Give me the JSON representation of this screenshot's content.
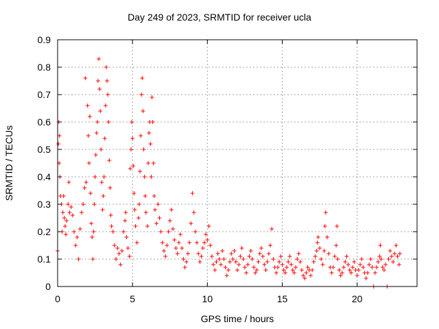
{
  "chart_data": {
    "type": "scatter",
    "title": "Day 249 of 2023, SRMTID for receiver ucla",
    "xlabel": "GPS time / hours",
    "ylabel": "SRMTID / TECUs",
    "xlim": [
      0,
      24
    ],
    "ylim": [
      0,
      0.9
    ],
    "xticks": [
      0,
      5,
      10,
      15,
      20
    ],
    "yticks": [
      0,
      0.1,
      0.2,
      0.3,
      0.4,
      0.5,
      0.6,
      0.7,
      0.8,
      0.9
    ],
    "grid": true,
    "marker": "+",
    "series": [
      {
        "name": "SRMTID",
        "color": "#ff0000",
        "points": [
          [
            0.0,
            0.13
          ],
          [
            0.05,
            0.52
          ],
          [
            0.08,
            0.6
          ],
          [
            0.1,
            0.45
          ],
          [
            0.12,
            0.55
          ],
          [
            0.15,
            0.4
          ],
          [
            0.2,
            0.33
          ],
          [
            0.25,
            0.3
          ],
          [
            0.3,
            0.2
          ],
          [
            0.35,
            0.27
          ],
          [
            0.4,
            0.33
          ],
          [
            0.45,
            0.25
          ],
          [
            0.5,
            0.22
          ],
          [
            0.55,
            0.19
          ],
          [
            0.6,
            0.24
          ],
          [
            0.7,
            0.3
          ],
          [
            0.75,
            0.38
          ],
          [
            0.8,
            0.27
          ],
          [
            0.9,
            0.29
          ],
          [
            1.0,
            0.26
          ],
          [
            1.1,
            0.2
          ],
          [
            1.2,
            0.15
          ],
          [
            1.3,
            0.18
          ],
          [
            1.4,
            0.1
          ],
          [
            1.5,
            0.21
          ],
          [
            1.6,
            0.27
          ],
          [
            1.7,
            0.3
          ],
          [
            1.8,
            0.36
          ],
          [
            1.9,
            0.38
          ],
          [
            1.85,
            0.76
          ],
          [
            2.0,
            0.66
          ],
          [
            2.05,
            0.55
          ],
          [
            2.1,
            0.45
          ],
          [
            2.15,
            0.62
          ],
          [
            2.2,
            0.34
          ],
          [
            2.25,
            0.23
          ],
          [
            2.3,
            0.18
          ],
          [
            2.35,
            0.1
          ],
          [
            2.4,
            0.2
          ],
          [
            2.45,
            0.3
          ],
          [
            2.5,
            0.4
          ],
          [
            2.55,
            0.48
          ],
          [
            2.6,
            0.56
          ],
          [
            2.65,
            0.6
          ],
          [
            2.7,
            0.75
          ],
          [
            2.75,
            0.83
          ],
          [
            2.8,
            0.72
          ],
          [
            2.85,
            0.64
          ],
          [
            2.9,
            0.5
          ],
          [
            2.95,
            0.38
          ],
          [
            3.0,
            0.28
          ],
          [
            3.05,
            0.33
          ],
          [
            3.1,
            0.4
          ],
          [
            3.15,
            0.54
          ],
          [
            3.2,
            0.66
          ],
          [
            3.25,
            0.8
          ],
          [
            3.3,
            0.75
          ],
          [
            3.35,
            0.7
          ],
          [
            3.4,
            0.6
          ],
          [
            3.45,
            0.46
          ],
          [
            3.5,
            0.36
          ],
          [
            3.55,
            0.26
          ],
          [
            3.6,
            0.22
          ],
          [
            3.7,
            0.2
          ],
          [
            3.8,
            0.15
          ],
          [
            3.9,
            0.1
          ],
          [
            4.0,
            0.14
          ],
          [
            4.1,
            0.12
          ],
          [
            4.2,
            0.08
          ],
          [
            4.3,
            0.13
          ],
          [
            4.4,
            0.2
          ],
          [
            4.5,
            0.24
          ],
          [
            4.55,
            0.27
          ],
          [
            4.6,
            0.18
          ],
          [
            4.7,
            0.14
          ],
          [
            4.8,
            0.11
          ],
          [
            4.85,
            0.43
          ],
          [
            4.9,
            0.5
          ],
          [
            4.95,
            0.6
          ],
          [
            5.0,
            0.54
          ],
          [
            5.05,
            0.44
          ],
          [
            5.1,
            0.34
          ],
          [
            5.15,
            0.28
          ],
          [
            5.2,
            0.22
          ],
          [
            5.3,
            0.16
          ],
          [
            5.4,
            0.25
          ],
          [
            5.45,
            0.3
          ],
          [
            5.5,
            0.42
          ],
          [
            5.55,
            0.55
          ],
          [
            5.6,
            0.7
          ],
          [
            5.65,
            0.76
          ],
          [
            5.7,
            0.64
          ],
          [
            5.75,
            0.5
          ],
          [
            5.8,
            0.4
          ],
          [
            5.85,
            0.33
          ],
          [
            5.9,
            0.27
          ],
          [
            6.0,
            0.22
          ],
          [
            6.05,
            0.45
          ],
          [
            6.1,
            0.56
          ],
          [
            6.15,
            0.6
          ],
          [
            6.2,
            0.52
          ],
          [
            6.25,
            0.4
          ],
          [
            6.3,
            0.69
          ],
          [
            6.35,
            0.6
          ],
          [
            6.4,
            0.45
          ],
          [
            6.45,
            0.33
          ],
          [
            6.5,
            0.28
          ],
          [
            6.6,
            0.23
          ],
          [
            6.7,
            0.3
          ],
          [
            6.8,
            0.25
          ],
          [
            6.9,
            0.2
          ],
          [
            7.0,
            0.16
          ],
          [
            7.1,
            0.13
          ],
          [
            7.2,
            0.11
          ],
          [
            7.3,
            0.15
          ],
          [
            7.4,
            0.2
          ],
          [
            7.5,
            0.24
          ],
          [
            7.6,
            0.28
          ],
          [
            7.7,
            0.21
          ],
          [
            7.8,
            0.17
          ],
          [
            7.9,
            0.14
          ],
          [
            8.0,
            0.12
          ],
          [
            8.1,
            0.16
          ],
          [
            8.2,
            0.19
          ],
          [
            8.3,
            0.14
          ],
          [
            8.4,
            0.1
          ],
          [
            8.5,
            0.07
          ],
          [
            8.6,
            0.09
          ],
          [
            8.7,
            0.12
          ],
          [
            8.8,
            0.16
          ],
          [
            8.9,
            0.23
          ],
          [
            9.0,
            0.34
          ],
          [
            9.1,
            0.27
          ],
          [
            9.2,
            0.2
          ],
          [
            9.3,
            0.16
          ],
          [
            9.4,
            0.12
          ],
          [
            9.5,
            0.09
          ],
          [
            9.6,
            0.11
          ],
          [
            9.7,
            0.14
          ],
          [
            9.8,
            0.16
          ],
          [
            9.9,
            0.19
          ],
          [
            10.0,
            0.17
          ],
          [
            10.1,
            0.22
          ],
          [
            10.2,
            0.15
          ],
          [
            10.3,
            0.11
          ],
          [
            10.4,
            0.08
          ],
          [
            10.5,
            0.06
          ],
          [
            10.6,
            0.09
          ],
          [
            10.7,
            0.12
          ],
          [
            10.8,
            0.1
          ],
          [
            10.9,
            0.08
          ],
          [
            11.0,
            0.13
          ],
          [
            11.1,
            0.1
          ],
          [
            11.2,
            0.07
          ],
          [
            11.3,
            0.04
          ],
          [
            11.4,
            0.06
          ],
          [
            11.5,
            0.09
          ],
          [
            11.6,
            0.12
          ],
          [
            11.7,
            0.1
          ],
          [
            11.8,
            0.13
          ],
          [
            11.9,
            0.09
          ],
          [
            12.0,
            0.06
          ],
          [
            12.1,
            0.08
          ],
          [
            12.2,
            0.11
          ],
          [
            12.3,
            0.14
          ],
          [
            12.4,
            0.1
          ],
          [
            12.5,
            0.07
          ],
          [
            12.6,
            0.05
          ],
          [
            12.7,
            0.08
          ],
          [
            12.8,
            0.11
          ],
          [
            12.9,
            0.13
          ],
          [
            13.0,
            0.1
          ],
          [
            13.1,
            0.07
          ],
          [
            13.2,
            0.05
          ],
          [
            13.3,
            0.06
          ],
          [
            13.4,
            0.09
          ],
          [
            13.5,
            0.12
          ],
          [
            13.6,
            0.14
          ],
          [
            13.7,
            0.11
          ],
          [
            13.8,
            0.08
          ],
          [
            13.9,
            0.06
          ],
          [
            14.0,
            0.09
          ],
          [
            14.1,
            0.12
          ],
          [
            14.2,
            0.15
          ],
          [
            14.3,
            0.21
          ],
          [
            14.4,
            0.1
          ],
          [
            14.5,
            0.07
          ],
          [
            14.6,
            0.05
          ],
          [
            14.7,
            0.07
          ],
          [
            14.8,
            0.09
          ],
          [
            14.9,
            0.11
          ],
          [
            15.0,
            0.08
          ],
          [
            15.1,
            0.06
          ],
          [
            15.2,
            0.05
          ],
          [
            15.3,
            0.07
          ],
          [
            15.4,
            0.09
          ],
          [
            15.5,
            0.11
          ],
          [
            15.6,
            0.08
          ],
          [
            15.7,
            0.06
          ],
          [
            15.8,
            0.05
          ],
          [
            15.9,
            0.07
          ],
          [
            16.0,
            0.1
          ],
          [
            16.1,
            0.12
          ],
          [
            16.2,
            0.09
          ],
          [
            16.3,
            0.06
          ],
          [
            16.4,
            0.04
          ],
          [
            16.5,
            0.03
          ],
          [
            16.6,
            0.05
          ],
          [
            16.7,
            0.07
          ],
          [
            16.8,
            0.06
          ],
          [
            16.9,
            0.04
          ],
          [
            17.0,
            0.06
          ],
          [
            17.1,
            0.09
          ],
          [
            17.2,
            0.11
          ],
          [
            17.3,
            0.13
          ],
          [
            17.35,
            0.16
          ],
          [
            17.4,
            0.18
          ],
          [
            17.5,
            0.14
          ],
          [
            17.6,
            0.1
          ],
          [
            17.7,
            0.08
          ],
          [
            17.8,
            0.13
          ],
          [
            17.85,
            0.22
          ],
          [
            17.9,
            0.27
          ],
          [
            18.0,
            0.18
          ],
          [
            18.1,
            0.12
          ],
          [
            18.2,
            0.07
          ],
          [
            18.3,
            0.05
          ],
          [
            18.4,
            0.07
          ],
          [
            18.5,
            0.11
          ],
          [
            18.6,
            0.15
          ],
          [
            18.65,
            0.22
          ],
          [
            18.7,
            0.1
          ],
          [
            18.8,
            0.06
          ],
          [
            18.9,
            0.04
          ],
          [
            19.0,
            0.05
          ],
          [
            19.1,
            0.07
          ],
          [
            19.2,
            0.09
          ],
          [
            19.3,
            0.11
          ],
          [
            19.4,
            0.08
          ],
          [
            19.5,
            0.06
          ],
          [
            19.6,
            0.05
          ],
          [
            19.7,
            0.07
          ],
          [
            19.8,
            0.09
          ],
          [
            19.9,
            0.06
          ],
          [
            20.0,
            0.04
          ],
          [
            20.1,
            0.06
          ],
          [
            20.2,
            0.08
          ],
          [
            20.3,
            0.1
          ],
          [
            20.4,
            0.07
          ],
          [
            20.5,
            0.05
          ],
          [
            20.6,
            0.03
          ],
          [
            20.7,
            0.05
          ],
          [
            20.8,
            0.08
          ],
          [
            20.9,
            0.1
          ],
          [
            21.0,
            0.07
          ],
          [
            21.1,
            0.0
          ],
          [
            21.2,
            0.05
          ],
          [
            21.3,
            0.07
          ],
          [
            21.4,
            0.09
          ],
          [
            21.5,
            0.11
          ],
          [
            21.55,
            0.15
          ],
          [
            21.6,
            0.1
          ],
          [
            21.7,
            0.07
          ],
          [
            21.8,
            0.06
          ],
          [
            21.9,
            0.08
          ],
          [
            22.0,
            0.0
          ],
          [
            22.1,
            0.1
          ],
          [
            22.2,
            0.13
          ],
          [
            22.3,
            0.11
          ],
          [
            22.4,
            0.09
          ],
          [
            22.5,
            0.12
          ],
          [
            22.6,
            0.15
          ],
          [
            22.7,
            0.11
          ],
          [
            22.8,
            0.08
          ],
          [
            22.85,
            0.12
          ]
        ]
      }
    ]
  }
}
